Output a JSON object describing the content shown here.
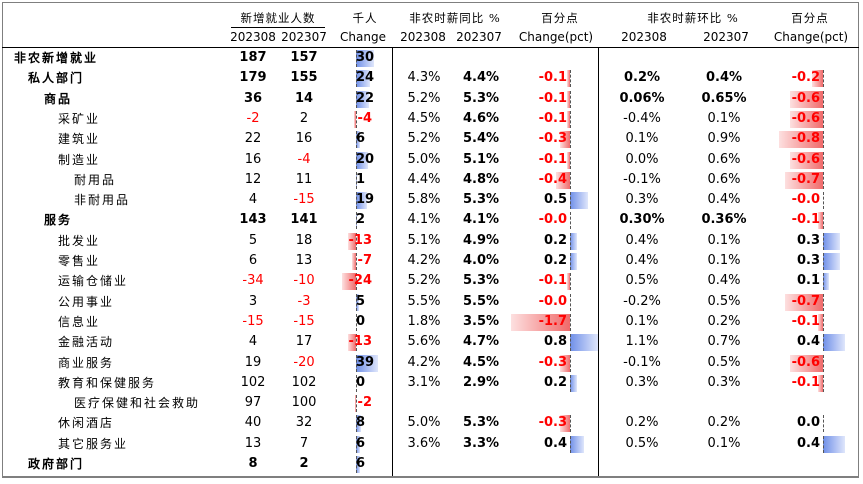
{
  "headers": {
    "g1_title": "新增就业人数",
    "g1_unit": "千人",
    "g2_title": "非农时薪同比 %",
    "g2_unit": "百分点",
    "g3_title": "非农时薪环比 %",
    "g3_unit": "百分点",
    "col_202308": "202308",
    "col_202307": "202307",
    "col_change": "Change",
    "col_change_pct": "Change(pct)"
  },
  "rows": [
    {
      "label": "非农新增就业",
      "indent": 0,
      "bold": true,
      "a": "187",
      "b": "157",
      "c": "30",
      "y1": "",
      "y2": "",
      "yc": "",
      "m1": "",
      "m2": "",
      "mc": ""
    },
    {
      "label": "私人部门",
      "indent": 1,
      "bold": true,
      "a": "179",
      "b": "155",
      "c": "24",
      "y1": "4.3%",
      "y2": "4.4%",
      "yc": "-0.1",
      "m1": "0.2%",
      "m2": "0.4%",
      "mc": "-0.2"
    },
    {
      "label": "商品",
      "indent": 2,
      "bold": true,
      "a": "36",
      "b": "14",
      "c": "22",
      "y1": "5.2%",
      "y2": "5.3%",
      "yc": "-0.1",
      "m1": "0.06%",
      "m2": "0.65%",
      "mc": "-0.6"
    },
    {
      "label": "采矿业",
      "indent": 3,
      "bold": false,
      "a": "-2",
      "b": "2",
      "c": "-4",
      "y1": "4.5%",
      "y2": "4.6%",
      "yc": "-0.1",
      "m1": "-0.4%",
      "m2": "0.1%",
      "mc": "-0.6"
    },
    {
      "label": "建筑业",
      "indent": 3,
      "bold": false,
      "a": "22",
      "b": "16",
      "c": "6",
      "y1": "5.2%",
      "y2": "5.4%",
      "yc": "-0.3",
      "m1": "0.1%",
      "m2": "0.9%",
      "mc": "-0.8"
    },
    {
      "label": "制造业",
      "indent": 3,
      "bold": false,
      "a": "16",
      "b": "-4",
      "c": "20",
      "y1": "5.0%",
      "y2": "5.1%",
      "yc": "-0.1",
      "m1": "0.0%",
      "m2": "0.6%",
      "mc": "-0.6"
    },
    {
      "label": "耐用品",
      "indent": 4,
      "bold": false,
      "a": "12",
      "b": "11",
      "c": "1",
      "y1": "4.4%",
      "y2": "4.8%",
      "yc": "-0.4",
      "m1": "-0.1%",
      "m2": "0.6%",
      "mc": "-0.7"
    },
    {
      "label": "非耐用品",
      "indent": 4,
      "bold": false,
      "a": "4",
      "b": "-15",
      "c": "19",
      "y1": "5.8%",
      "y2": "5.3%",
      "yc": "0.5",
      "m1": "0.3%",
      "m2": "0.4%",
      "mc": "-0.0"
    },
    {
      "label": "服务",
      "indent": 2,
      "bold": true,
      "a": "143",
      "b": "141",
      "c": "2",
      "y1": "4.1%",
      "y2": "4.1%",
      "yc": "-0.0",
      "m1": "0.30%",
      "m2": "0.36%",
      "mc": "-0.1"
    },
    {
      "label": "批发业",
      "indent": 3,
      "bold": false,
      "a": "5",
      "b": "18",
      "c": "-13",
      "y1": "5.1%",
      "y2": "4.9%",
      "yc": "0.2",
      "m1": "0.4%",
      "m2": "0.1%",
      "mc": "0.3"
    },
    {
      "label": "零售业",
      "indent": 3,
      "bold": false,
      "a": "6",
      "b": "13",
      "c": "-7",
      "y1": "4.2%",
      "y2": "4.0%",
      "yc": "0.2",
      "m1": "0.4%",
      "m2": "0.1%",
      "mc": "0.3"
    },
    {
      "label": "运输仓储业",
      "indent": 3,
      "bold": false,
      "a": "-34",
      "b": "-10",
      "c": "-24",
      "y1": "5.2%",
      "y2": "5.3%",
      "yc": "-0.1",
      "m1": "0.5%",
      "m2": "0.4%",
      "mc": "0.1"
    },
    {
      "label": "公用事业",
      "indent": 3,
      "bold": false,
      "a": "3",
      "b": "-3",
      "c": "5",
      "y1": "5.5%",
      "y2": "5.5%",
      "yc": "-0.0",
      "m1": "-0.2%",
      "m2": "0.5%",
      "mc": "-0.7"
    },
    {
      "label": "信息业",
      "indent": 3,
      "bold": false,
      "a": "-15",
      "b": "-15",
      "c": "0",
      "y1": "1.8%",
      "y2": "3.5%",
      "yc": "-1.7",
      "m1": "0.1%",
      "m2": "0.2%",
      "mc": "-0.1"
    },
    {
      "label": "金融活动",
      "indent": 3,
      "bold": false,
      "a": "4",
      "b": "17",
      "c": "-13",
      "y1": "5.6%",
      "y2": "4.7%",
      "yc": "0.8",
      "m1": "1.1%",
      "m2": "0.7%",
      "mc": "0.4"
    },
    {
      "label": "商业服务",
      "indent": 3,
      "bold": false,
      "a": "19",
      "b": "-20",
      "c": "39",
      "y1": "4.2%",
      "y2": "4.5%",
      "yc": "-0.3",
      "m1": "-0.1%",
      "m2": "0.5%",
      "mc": "-0.6"
    },
    {
      "label": "教育和保健服务",
      "indent": 3,
      "bold": false,
      "a": "102",
      "b": "102",
      "c": "0",
      "y1": "3.1%",
      "y2": "2.9%",
      "yc": "0.2",
      "m1": "0.3%",
      "m2": "0.3%",
      "mc": "-0.1"
    },
    {
      "label": "医疗保健和社会救助",
      "indent": 4,
      "bold": false,
      "a": "97",
      "b": "100",
      "c": "-2",
      "y1": "",
      "y2": "",
      "yc": "",
      "m1": "",
      "m2": "",
      "mc": ""
    },
    {
      "label": "休闲酒店",
      "indent": 3,
      "bold": false,
      "a": "40",
      "b": "32",
      "c": "8",
      "y1": "5.0%",
      "y2": "5.3%",
      "yc": "-0.3",
      "m1": "0.2%",
      "m2": "0.2%",
      "mc": "0.0"
    },
    {
      "label": "其它服务业",
      "indent": 3,
      "bold": false,
      "a": "13",
      "b": "7",
      "c": "6",
      "y1": "3.6%",
      "y2": "3.3%",
      "yc": "0.4",
      "m1": "0.5%",
      "m2": "0.1%",
      "mc": "0.4"
    },
    {
      "label": "政府部门",
      "indent": 1,
      "bold": true,
      "a": "8",
      "b": "2",
      "c": "6",
      "y1": "",
      "y2": "",
      "yc": "",
      "m1": "",
      "m2": "",
      "mc": ""
    }
  ]
}
